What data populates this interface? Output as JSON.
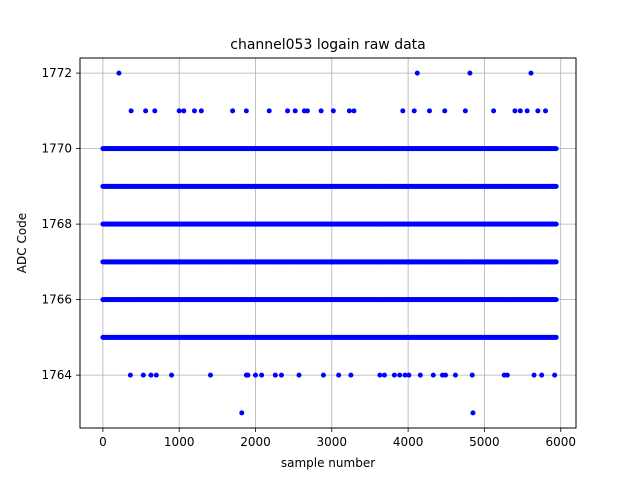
{
  "chart_data": {
    "type": "scatter",
    "title": "channel053 logain raw data",
    "xlabel": "sample number",
    "ylabel": "ADC Code",
    "xlim": [
      -300,
      6200
    ],
    "ylim": [
      1762.6,
      1772.4
    ],
    "x_ticks": [
      0,
      1000,
      2000,
      3000,
      4000,
      5000,
      6000
    ],
    "y_ticks": [
      1764,
      1766,
      1768,
      1770,
      1772
    ],
    "x_tick_labels": [
      "0",
      "1000",
      "2000",
      "3000",
      "4000",
      "5000",
      "6000"
    ],
    "y_tick_labels": [
      "1764",
      "1766",
      "1768",
      "1770",
      "1772"
    ],
    "grid": true,
    "marker_color": "#0000ff",
    "n_samples": 5940,
    "dense_levels": [
      {
        "y": 1765,
        "x_range": [
          0,
          5940
        ]
      },
      {
        "y": 1766,
        "x_range": [
          0,
          5940
        ]
      },
      {
        "y": 1767,
        "x_range": [
          0,
          5940
        ]
      },
      {
        "y": 1768,
        "x_range": [
          0,
          5940
        ]
      },
      {
        "y": 1769,
        "x_range": [
          0,
          5940
        ]
      },
      {
        "y": 1770,
        "x_range": [
          0,
          5940
        ]
      }
    ],
    "sparse_points": [
      {
        "x": 210,
        "y": 1772
      },
      {
        "x": 4120,
        "y": 1772
      },
      {
        "x": 4810,
        "y": 1772
      },
      {
        "x": 5610,
        "y": 1772
      },
      {
        "x": 370,
        "y": 1771
      },
      {
        "x": 560,
        "y": 1771
      },
      {
        "x": 680,
        "y": 1771
      },
      {
        "x": 1000,
        "y": 1771
      },
      {
        "x": 1060,
        "y": 1771
      },
      {
        "x": 1200,
        "y": 1771
      },
      {
        "x": 1290,
        "y": 1771
      },
      {
        "x": 1700,
        "y": 1771
      },
      {
        "x": 1880,
        "y": 1771
      },
      {
        "x": 2180,
        "y": 1771
      },
      {
        "x": 2420,
        "y": 1771
      },
      {
        "x": 2520,
        "y": 1771
      },
      {
        "x": 2640,
        "y": 1771
      },
      {
        "x": 2680,
        "y": 1771
      },
      {
        "x": 2860,
        "y": 1771
      },
      {
        "x": 3020,
        "y": 1771
      },
      {
        "x": 3230,
        "y": 1771
      },
      {
        "x": 3290,
        "y": 1771
      },
      {
        "x": 3930,
        "y": 1771
      },
      {
        "x": 4080,
        "y": 1771
      },
      {
        "x": 4280,
        "y": 1771
      },
      {
        "x": 4480,
        "y": 1771
      },
      {
        "x": 4750,
        "y": 1771
      },
      {
        "x": 5120,
        "y": 1771
      },
      {
        "x": 5400,
        "y": 1771
      },
      {
        "x": 5470,
        "y": 1771
      },
      {
        "x": 5560,
        "y": 1771
      },
      {
        "x": 5700,
        "y": 1771
      },
      {
        "x": 5800,
        "y": 1771
      },
      {
        "x": 360,
        "y": 1764
      },
      {
        "x": 530,
        "y": 1764
      },
      {
        "x": 630,
        "y": 1764
      },
      {
        "x": 700,
        "y": 1764
      },
      {
        "x": 900,
        "y": 1764
      },
      {
        "x": 1410,
        "y": 1764
      },
      {
        "x": 1880,
        "y": 1764
      },
      {
        "x": 1900,
        "y": 1764
      },
      {
        "x": 2000,
        "y": 1764
      },
      {
        "x": 2080,
        "y": 1764
      },
      {
        "x": 2260,
        "y": 1764
      },
      {
        "x": 2340,
        "y": 1764
      },
      {
        "x": 2570,
        "y": 1764
      },
      {
        "x": 2890,
        "y": 1764
      },
      {
        "x": 3090,
        "y": 1764
      },
      {
        "x": 3250,
        "y": 1764
      },
      {
        "x": 3630,
        "y": 1764
      },
      {
        "x": 3690,
        "y": 1764
      },
      {
        "x": 3820,
        "y": 1764
      },
      {
        "x": 3890,
        "y": 1764
      },
      {
        "x": 3960,
        "y": 1764
      },
      {
        "x": 4010,
        "y": 1764
      },
      {
        "x": 4160,
        "y": 1764
      },
      {
        "x": 4330,
        "y": 1764
      },
      {
        "x": 4450,
        "y": 1764
      },
      {
        "x": 4490,
        "y": 1764
      },
      {
        "x": 4620,
        "y": 1764
      },
      {
        "x": 4840,
        "y": 1764
      },
      {
        "x": 5260,
        "y": 1764
      },
      {
        "x": 5300,
        "y": 1764
      },
      {
        "x": 5650,
        "y": 1764
      },
      {
        "x": 5750,
        "y": 1764
      },
      {
        "x": 5920,
        "y": 1764
      },
      {
        "x": 1820,
        "y": 1763
      },
      {
        "x": 4850,
        "y": 1763
      }
    ]
  }
}
